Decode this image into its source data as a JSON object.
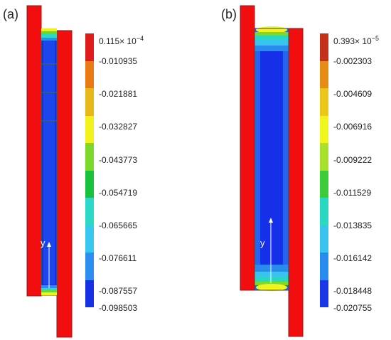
{
  "panels": [
    {
      "label": "(a)",
      "axis_label": "y",
      "colorbar": {
        "top_value": "0.115",
        "top_times": "× 10",
        "top_exp": "−4",
        "ticks": [
          "-0.010935",
          "-0.021881",
          "-0.032827",
          "-0.043773",
          "-0.054719",
          "-0.065665",
          "-0.076611",
          "-0.087557",
          "-0.098503"
        ],
        "colors": [
          "#e01b1b",
          "#ea7a12",
          "#e8b81a",
          "#f2f21c",
          "#7cd92a",
          "#19c23c",
          "#2bd9c6",
          "#37c7f0",
          "#2a8ff0",
          "#1630e6"
        ]
      }
    },
    {
      "label": "(b)",
      "axis_label": "y",
      "colorbar": {
        "top_value": "0.393",
        "top_times": "× 10",
        "top_exp": "−5",
        "ticks": [
          "-0.002303",
          "-0.004609",
          "-0.006916",
          "-0.009222",
          "-0.011529",
          "-0.013835",
          "-0.016142",
          "-0.018448",
          "-0.020755"
        ],
        "colors": [
          "#c4301c",
          "#e48c14",
          "#e9c81a",
          "#f0f51e",
          "#a8e02a",
          "#3ccc3a",
          "#28d8c0",
          "#38c4ef",
          "#2a8bef",
          "#1b36e4"
        ]
      }
    }
  ]
}
